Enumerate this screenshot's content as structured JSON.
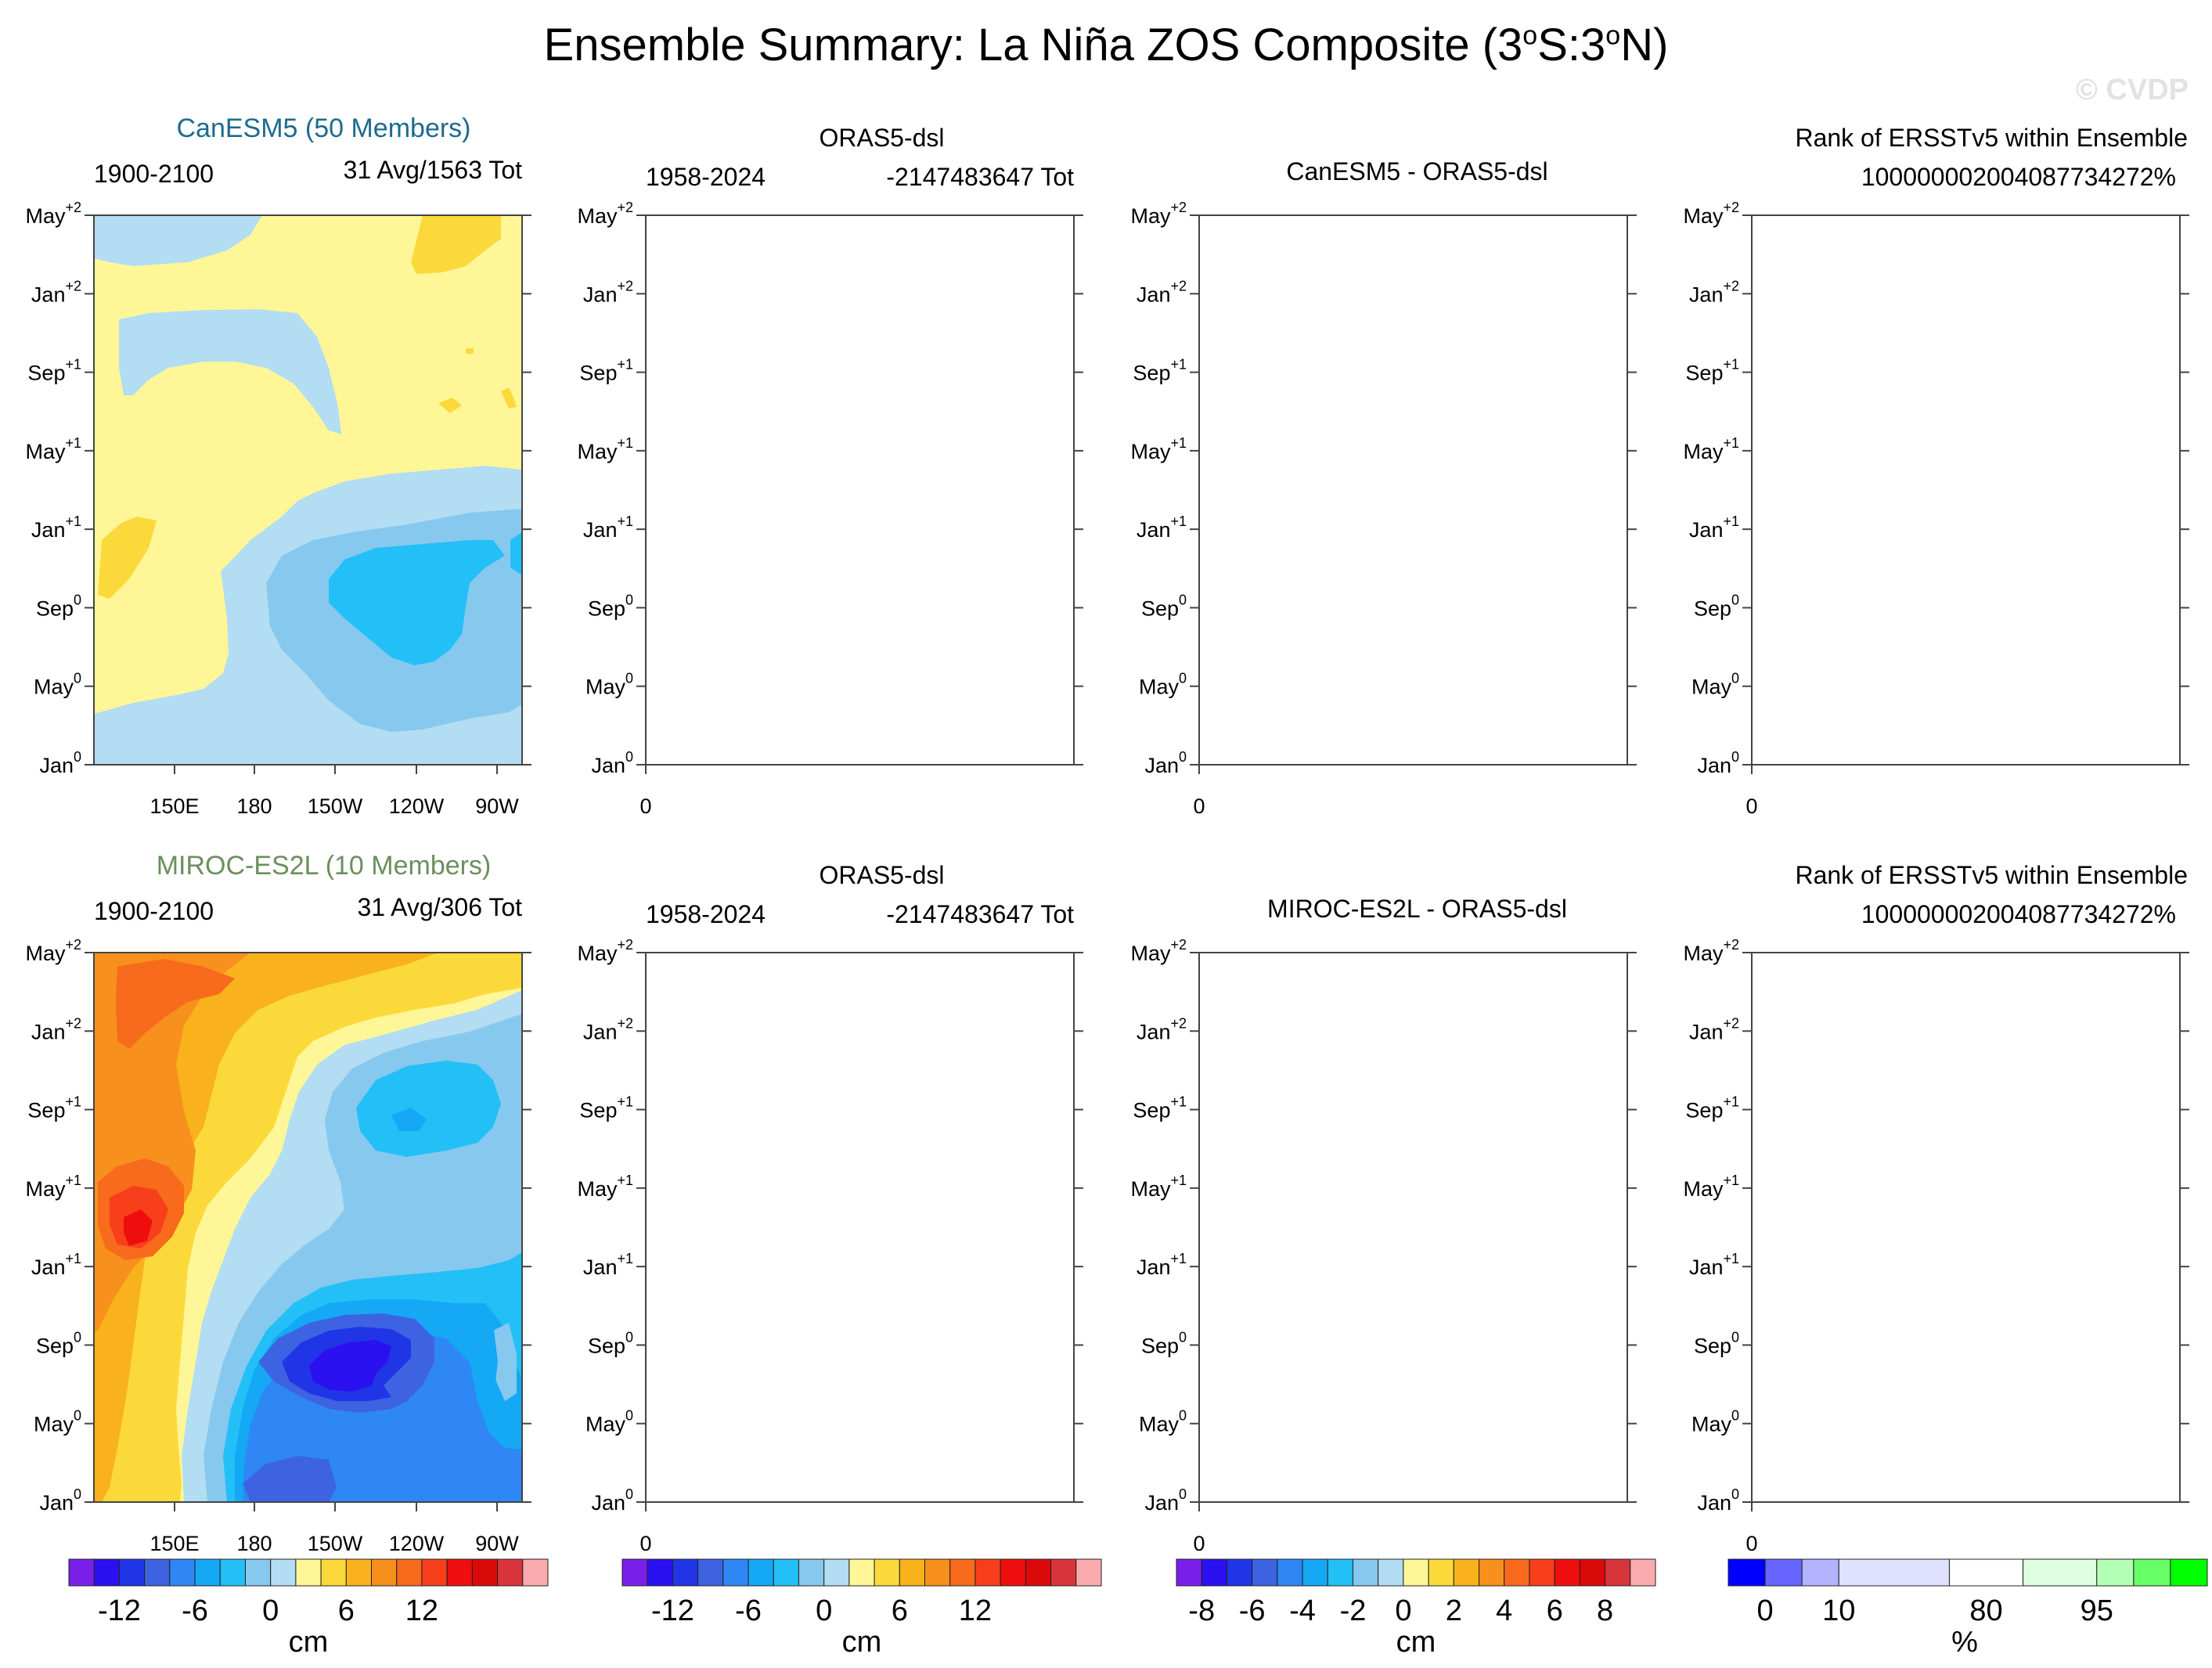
{
  "title": {
    "main": "Ensemble Summary: La Niña ZOS Composite (3",
    "sup1": "o",
    "mid": "S:3",
    "sup2": "o",
    "end": "N)"
  },
  "watermark": "© CVDP",
  "y_ticks": [
    {
      "label": "Jan",
      "sup": "0"
    },
    {
      "label": "May",
      "sup": "0"
    },
    {
      "label": "Sep",
      "sup": "0"
    },
    {
      "label": "Jan",
      "sup": "+1"
    },
    {
      "label": "May",
      "sup": "+1"
    },
    {
      "label": "Sep",
      "sup": "+1"
    },
    {
      "label": "Jan",
      "sup": "+2"
    },
    {
      "label": "May",
      "sup": "+2"
    }
  ],
  "x_ticks_model": [
    "150E",
    "180",
    "150W",
    "120W",
    "90W"
  ],
  "x_tick_empty": "0",
  "rows": [
    {
      "model_title": "CanESM5 (50 Members)",
      "model_color": "#1d6b8f",
      "model_period": "1900-2100",
      "model_count": "31 Avg/1563 Tot",
      "obs_title": "ORAS5-dsl",
      "obs_period": "1958-2024",
      "obs_count": "-2147483647 Tot",
      "diff_title": "CanESM5 - ORAS5-dsl",
      "rank_title": "Rank of ERSSTv5 within Ensemble",
      "rank_value": "1000000020040877342 72%"
    },
    {
      "model_title": "MIROC-ES2L (10 Members)",
      "model_color": "#6b8f5e",
      "model_period": "1900-2100",
      "model_count": "31 Avg/306 Tot",
      "obs_title": "ORAS5-dsl",
      "obs_period": "1958-2024",
      "obs_count": "-2147483647 Tot",
      "diff_title": "MIROC-ES2L - ORAS5-dsl",
      "rank_title": "Rank of ERSSTv5 within Ensemble",
      "rank_value": "1000000020040877342 72%"
    }
  ],
  "colorbars": [
    {
      "unit": "cm",
      "labels": [
        "-12",
        "-6",
        "0",
        "6",
        "12"
      ],
      "label_positions": [
        2,
        5,
        8,
        11,
        14
      ],
      "colors": [
        "#7a1fe8",
        "#2b10f0",
        "#2035e6",
        "#3d63e2",
        "#2f86f5",
        "#14a8f5",
        "#22c0f7",
        "#87c8ef",
        "#b3ddf2",
        "#fff797",
        "#fcd93b",
        "#f9b21c",
        "#f7901c",
        "#f86a1c",
        "#f73f1c",
        "#ef0e0e",
        "#db0a0a",
        "#d8343b",
        "#fbabad"
      ]
    },
    {
      "unit": "cm",
      "labels": [
        "-12",
        "-6",
        "0",
        "6",
        "12"
      ],
      "label_positions": [
        2,
        5,
        8,
        11,
        14
      ],
      "colors": [
        "#7a1fe8",
        "#2b10f0",
        "#2035e6",
        "#3d63e2",
        "#2f86f5",
        "#14a8f5",
        "#22c0f7",
        "#87c8ef",
        "#b3ddf2",
        "#fff797",
        "#fcd93b",
        "#f9b21c",
        "#f7901c",
        "#f86a1c",
        "#f73f1c",
        "#ef0e0e",
        "#db0a0a",
        "#d8343b",
        "#fbabad"
      ]
    },
    {
      "unit": "cm",
      "labels": [
        "-8",
        "-6",
        "-4",
        "-2",
        "0",
        "2",
        "4",
        "6",
        "8"
      ],
      "label_positions": [
        1,
        3,
        5,
        7,
        9,
        11,
        13,
        15,
        17
      ],
      "colors": [
        "#7a1fe8",
        "#2b10f0",
        "#2035e6",
        "#3d63e2",
        "#2f86f5",
        "#14a8f5",
        "#22c0f7",
        "#87c8ef",
        "#b3ddf2",
        "#fff797",
        "#fcd93b",
        "#f9b21c",
        "#f7901c",
        "#f86a1c",
        "#f73f1c",
        "#ef0e0e",
        "#db0a0a",
        "#d8343b",
        "#fbabad"
      ]
    },
    {
      "unit": "%",
      "labels": [
        "0",
        "10",
        "80",
        "95"
      ],
      "label_positions": [
        0.5,
        1.5,
        3.5,
        5.0
      ],
      "colors": [
        "#0000ff",
        "#6666ff",
        "#b3b3ff",
        "#e0e0ff",
        "#ffffff",
        "#e0ffe0",
        "#b3ffb3",
        "#66ff66",
        "#00ff00"
      ],
      "widths": [
        0.5,
        0.5,
        0.5,
        1.5,
        1.0,
        1.0,
        0.5,
        0.5,
        0.5
      ]
    }
  ],
  "chart_data": [
    {
      "type": "heatmap",
      "title": "CanESM5 (50 Members)",
      "xlabel": "",
      "ylabel": "",
      "x_ticks": [
        "150E",
        "180",
        "150W",
        "120W",
        "90W"
      ],
      "y_ticks": [
        "Jan0",
        "May0",
        "Sep0",
        "Jan+1",
        "May+1",
        "Sep+1",
        "Jan+2",
        "May+2"
      ],
      "colorbar_unit": "cm",
      "regions": [
        {
          "level": 0,
          "label": "0 to 2 cm",
          "color": "#fff797"
        },
        {
          "level": -2,
          "label": "-2 to 0 cm",
          "color": "#b3ddf2"
        },
        {
          "level": -4,
          "label": "-4 to -2 cm",
          "color": "#87c8ef"
        },
        {
          "level": -6,
          "label": "-6 to -4 cm",
          "color": "#22c0f7"
        },
        {
          "level": 2,
          "label": "2 to 4 cm",
          "color": "#fcd93b"
        }
      ]
    },
    {
      "type": "heatmap",
      "title": "MIROC-ES2L (10 Members)",
      "xlabel": "",
      "ylabel": "",
      "x_ticks": [
        "150E",
        "180",
        "150W",
        "120W",
        "90W"
      ],
      "y_ticks": [
        "Jan0",
        "May0",
        "Sep0",
        "Jan+1",
        "May+1",
        "Sep+1",
        "Jan+2",
        "May+2"
      ],
      "colorbar_unit": "cm",
      "regions": [
        {
          "level": 2,
          "label": "2 to 4 cm",
          "color": "#fcd93b"
        },
        {
          "level": 4,
          "label": "4 to 6 cm",
          "color": "#f9b21c"
        },
        {
          "level": 6,
          "label": "6 to 8 cm",
          "color": "#f7901c"
        },
        {
          "level": 8,
          "label": "8 to 10 cm",
          "color": "#f86a1c"
        },
        {
          "level": 10,
          "label": "10 to 12 cm",
          "color": "#f73f1c"
        },
        {
          "level": 12,
          "label": "12 to 14 cm",
          "color": "#ef0e0e"
        },
        {
          "level": 0,
          "label": "0 to 2 cm",
          "color": "#fff797"
        },
        {
          "level": -2,
          "label": "-2 to 0 cm",
          "color": "#b3ddf2"
        },
        {
          "level": -4,
          "label": "-4 to -2 cm",
          "color": "#87c8ef"
        },
        {
          "level": -6,
          "label": "-6 to -4 cm",
          "color": "#22c0f7"
        },
        {
          "level": -8,
          "label": "-8 to -6 cm",
          "color": "#14a8f5"
        },
        {
          "level": -10,
          "label": "-10 to -8 cm",
          "color": "#2f86f5"
        },
        {
          "level": -12,
          "label": "-12 to -10 cm",
          "color": "#3d63e2"
        },
        {
          "level": -14,
          "label": "-14 to -12 cm",
          "color": "#2035e6"
        },
        {
          "level": -16,
          "label": "-16 to -14 cm",
          "color": "#2b10f0"
        }
      ]
    }
  ]
}
